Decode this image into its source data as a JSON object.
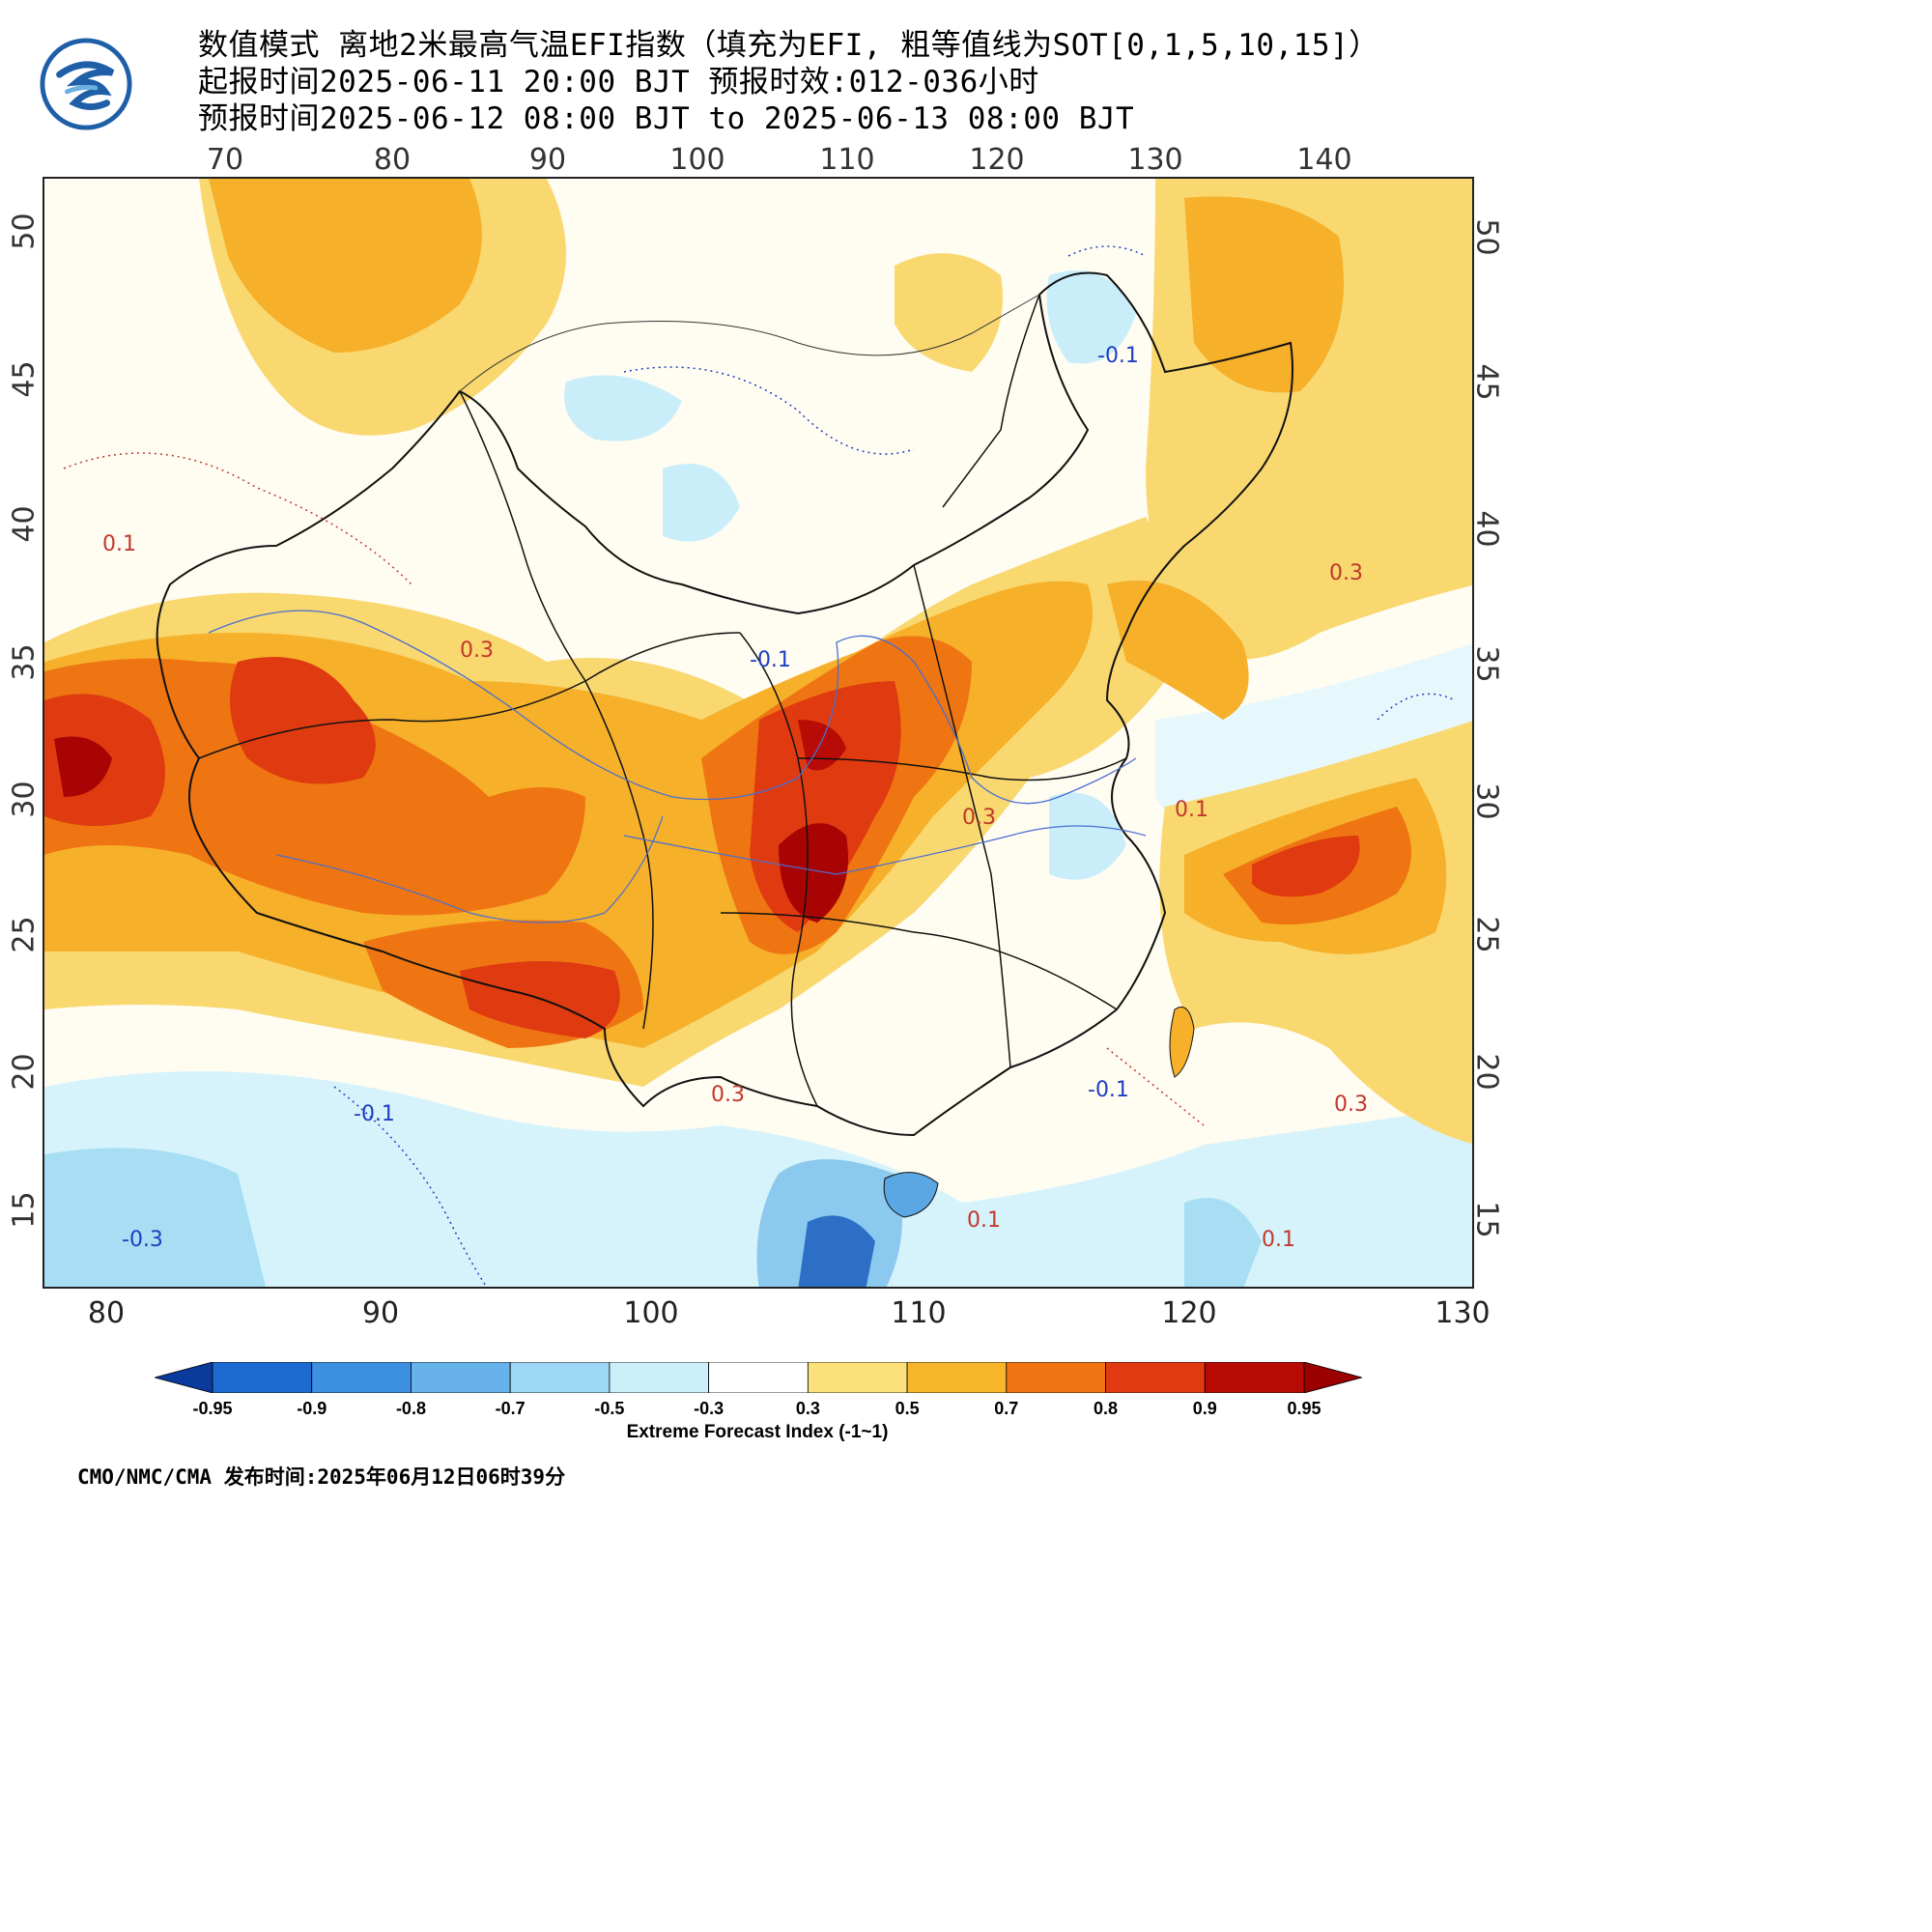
{
  "header": {
    "line1": "数值模式 离地2米最高气温EFI指数（填充为EFI, 粗等值线为SOT[0,1,5,10,15]）",
    "line2": "起报时间2025-06-11 20:00 BJT 预报时效:012-036小时",
    "line3": "预报时间2025-06-12 08:00 BJT to 2025-06-13 08:00 BJT"
  },
  "logo": {
    "icon": "cma-logo-icon",
    "colors": [
      "#1e5fa8",
      "#6ab0e0"
    ]
  },
  "axes": {
    "top_lon": [
      "70",
      "80",
      "90",
      "100",
      "110",
      "120",
      "130",
      "140"
    ],
    "bottom_lon": [
      "80",
      "90",
      "100",
      "110",
      "120",
      "130"
    ],
    "lat": [
      "50",
      "45",
      "40",
      "35",
      "30",
      "25",
      "20",
      "15"
    ]
  },
  "contour_labels": [
    {
      "text": "0.3",
      "color": "#c0392b"
    },
    {
      "text": "-0.1",
      "color": "#1f3fbf"
    },
    {
      "text": "0.1",
      "color": "#c0392b"
    },
    {
      "text": "-0.3",
      "color": "#1f3fbf"
    }
  ],
  "legend": {
    "title": "Extreme Forecast Index (-1~1)",
    "ticks": [
      "-0.95",
      "-0.9",
      "-0.8",
      "-0.7",
      "-0.5",
      "-0.3",
      "0.3",
      "0.5",
      "0.7",
      "0.8",
      "0.9",
      "0.95"
    ],
    "colors": [
      "#0a3a9c",
      "#1c6ad0",
      "#3d8fe0",
      "#67b2ea",
      "#9dd7f5",
      "#cdeffa",
      "#ffffff",
      "#fbe17a",
      "#f7b52c",
      "#f07412",
      "#e23a10",
      "#b80b06",
      "#9a0000"
    ]
  },
  "footer": "CMO/NMC/CMA 发布时间:2025年06月12日06时39分"
}
